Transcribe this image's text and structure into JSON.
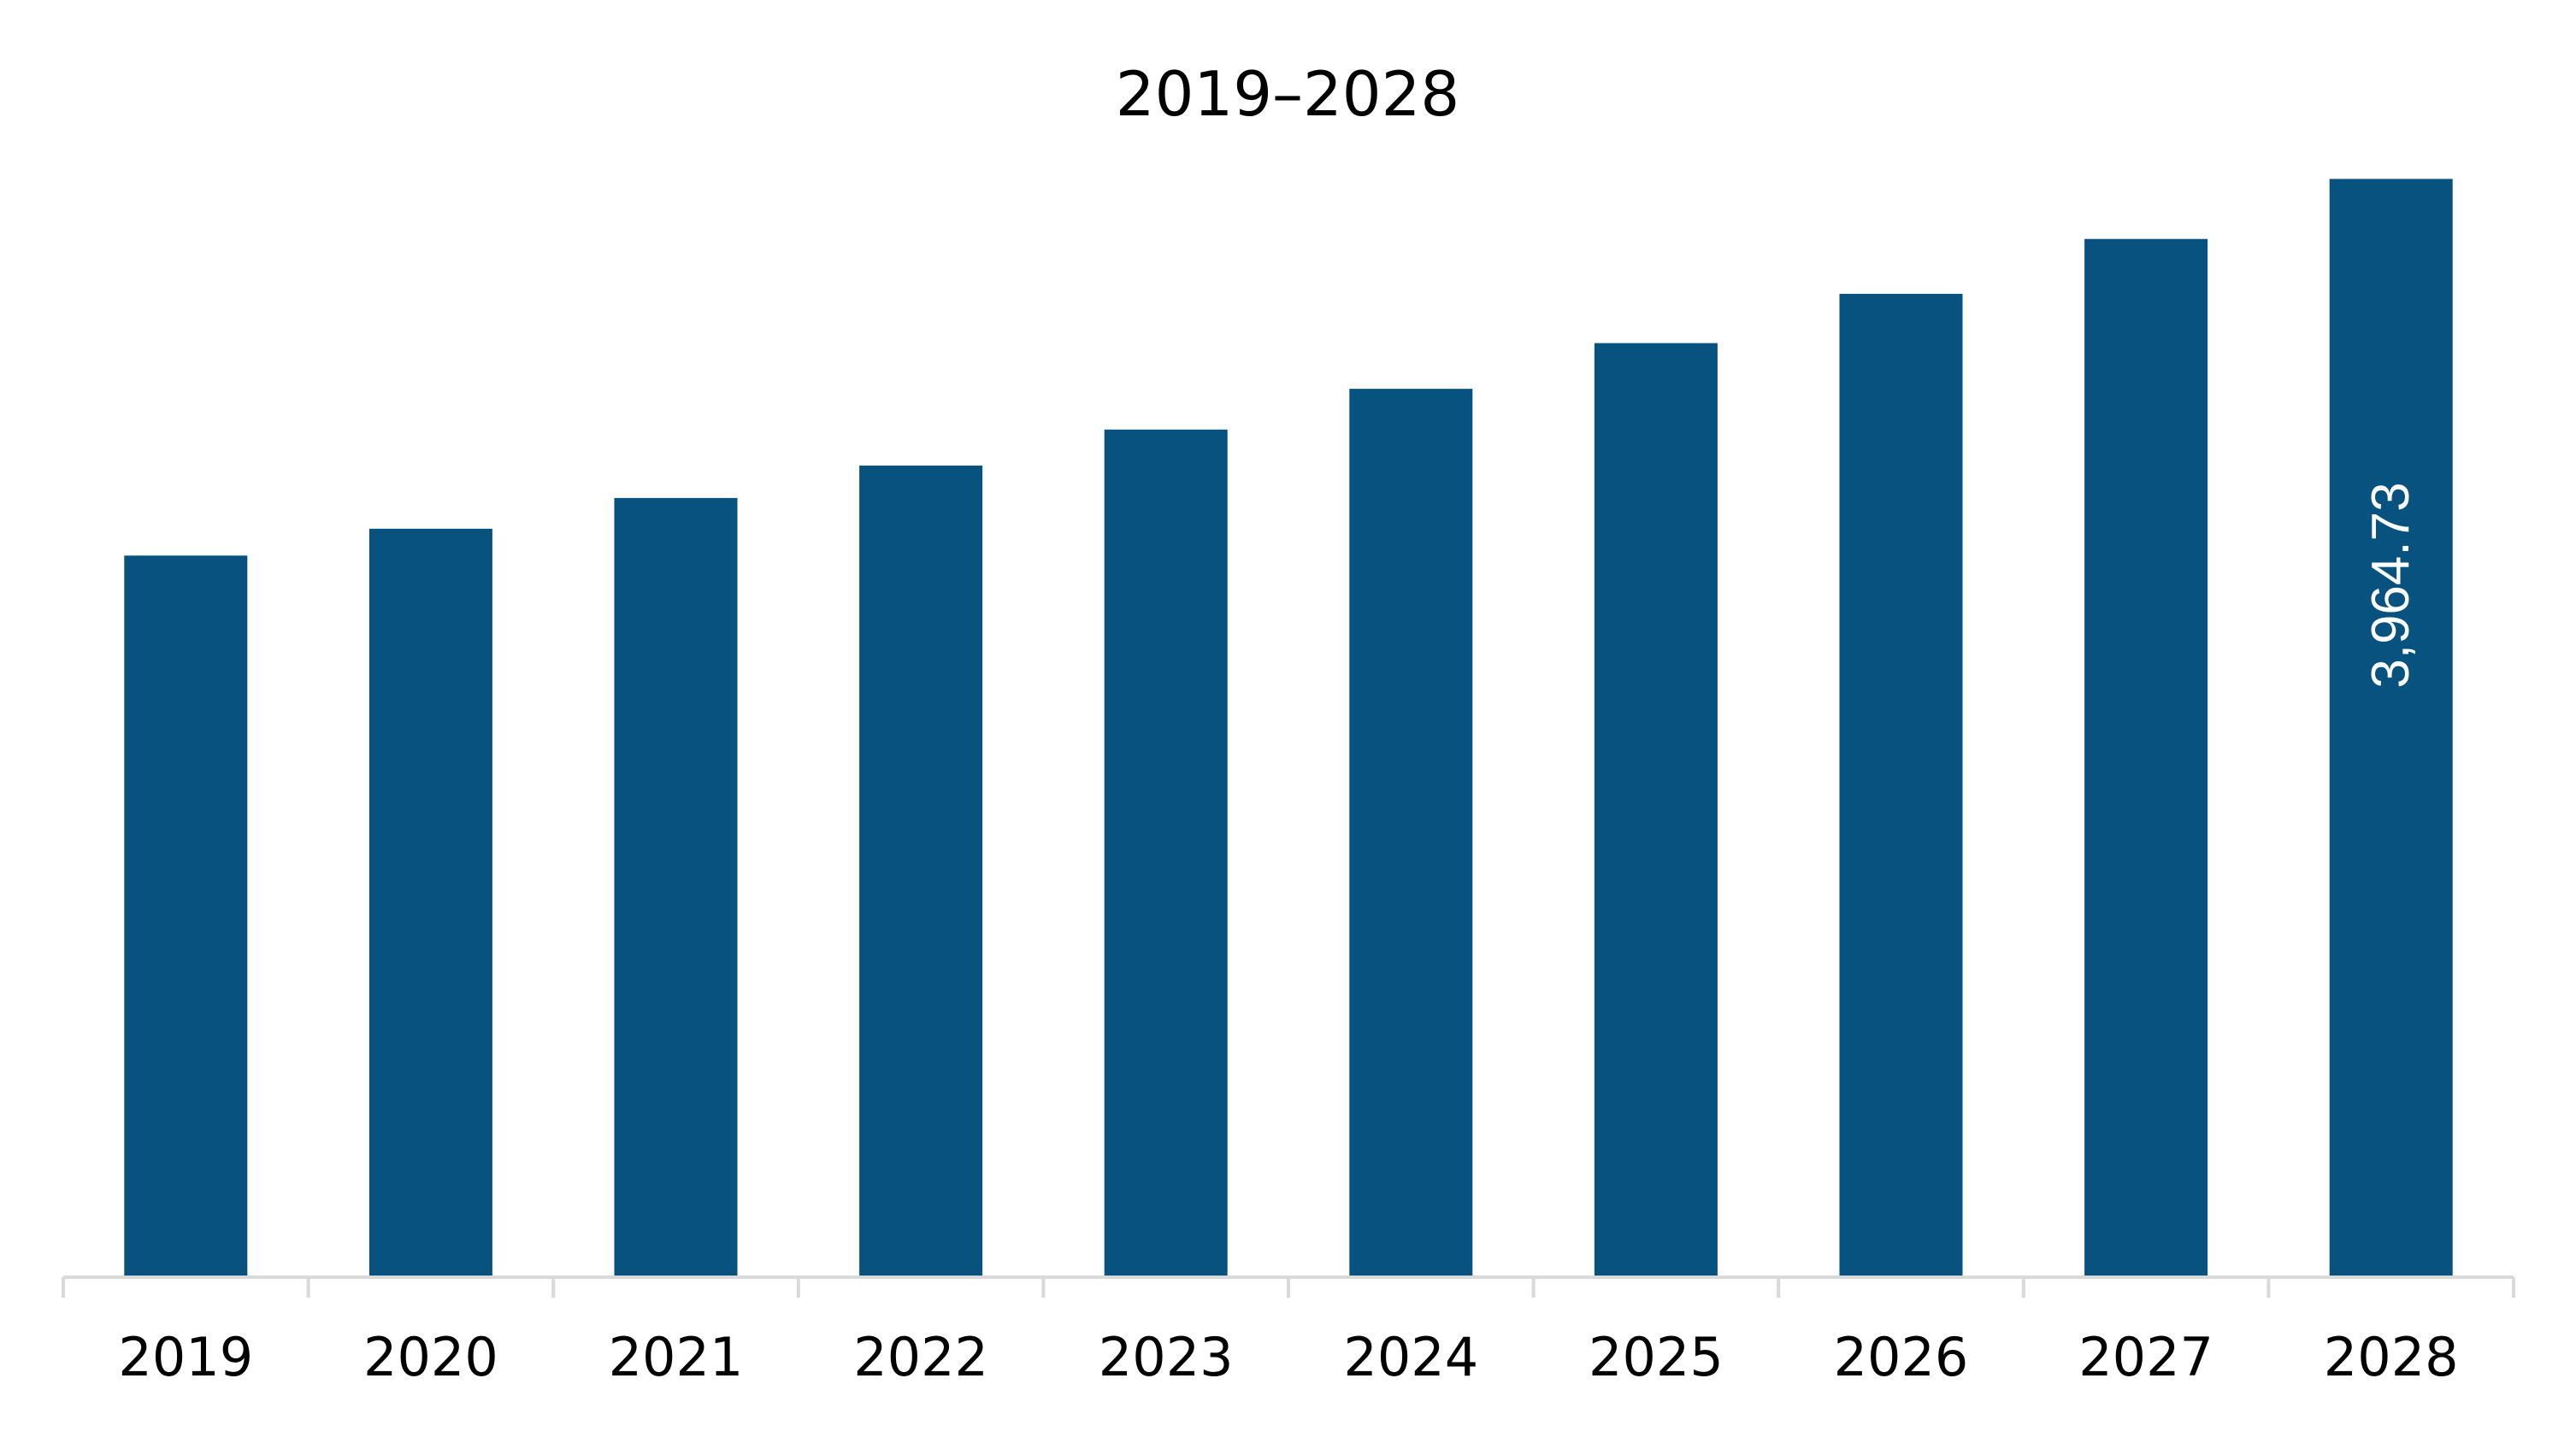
{
  "chart_data": {
    "type": "bar",
    "title": "2019–2028",
    "xlabel": "",
    "ylabel": "",
    "categories": [
      "2019",
      "2020",
      "2021",
      "2022",
      "2023",
      "2024",
      "2025",
      "2026",
      "2027",
      "2028"
    ],
    "values": [
      2605,
      2702,
      2813,
      2930,
      3060,
      3207,
      3372,
      3550,
      3748,
      3964.73
    ],
    "ylim": [
      0,
      4000
    ],
    "grid": false,
    "legend": "none",
    "data_labels": [
      {
        "category": "2028",
        "text": "3,964.73"
      }
    ],
    "colors": {
      "bar": "#08527f",
      "axis": "#d9d9d9",
      "text": "#000000",
      "data_label": "#ffffff"
    }
  }
}
